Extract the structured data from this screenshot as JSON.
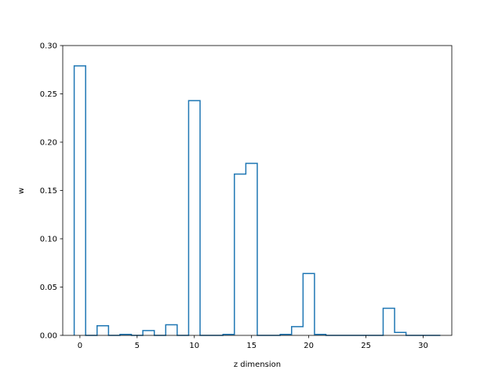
{
  "chart_data": {
    "type": "line",
    "style": "step-histogram",
    "title": "",
    "xlabel": "z dimension",
    "ylabel": "w",
    "xlim": [
      -1.5,
      32.5
    ],
    "ylim": [
      0.0,
      0.3
    ],
    "xticks": [
      0,
      5,
      10,
      15,
      20,
      25,
      30
    ],
    "xtick_labels": [
      "0",
      "5",
      "10",
      "15",
      "20",
      "25",
      "30"
    ],
    "yticks": [
      0.0,
      0.05,
      0.1,
      0.15,
      0.2,
      0.25,
      0.3
    ],
    "ytick_labels": [
      "0.00",
      "0.05",
      "0.10",
      "0.15",
      "0.20",
      "0.25",
      "0.30"
    ],
    "grid": false,
    "legend": "none",
    "series": [
      {
        "color": "#1f77b4",
        "x": [
          0,
          1,
          2,
          3,
          4,
          5,
          6,
          7,
          8,
          9,
          10,
          11,
          12,
          13,
          14,
          15,
          16,
          17,
          18,
          19,
          20,
          21,
          22,
          23,
          24,
          25,
          26,
          27,
          28,
          29,
          30,
          31
        ],
        "values": [
          0.279,
          0.0,
          0.01,
          0.0,
          0.001,
          0.0,
          0.005,
          0.0,
          0.011,
          0.0,
          0.243,
          0.0,
          0.0,
          0.001,
          0.167,
          0.178,
          0.0,
          0.0,
          0.001,
          0.009,
          0.064,
          0.001,
          0.0,
          0.0,
          0.0,
          0.0,
          0.0,
          0.028,
          0.003,
          0.0,
          0.0,
          0.0
        ]
      }
    ]
  }
}
